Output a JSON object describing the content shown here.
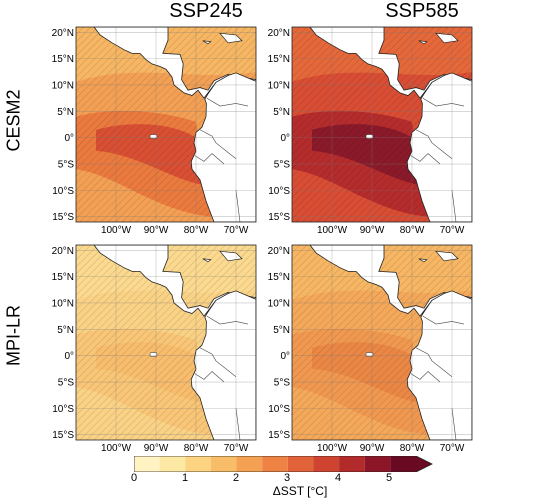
{
  "columns": [
    "SSP245",
    "SSP585"
  ],
  "rows": [
    "CESM2",
    "MPI-LR"
  ],
  "lat_ticks": [
    "20°N",
    "15°N",
    "10°N",
    "5°N",
    "0°",
    "5°S",
    "10°S",
    "15°S"
  ],
  "lon_ticks": [
    "100°W",
    "90°W",
    "80°W",
    "70°W"
  ],
  "colorbar": {
    "label": "ΔSST [°C]",
    "ticks": [
      "0",
      "1",
      "2",
      "3",
      "4",
      "5"
    ],
    "colors": [
      "#fff3c4",
      "#fde8a4",
      "#fbd381",
      "#f9bc68",
      "#f5a153",
      "#ee8343",
      "#e2633a",
      "#cf4431",
      "#b32a2b",
      "#8c1527",
      "#6a0a22"
    ]
  },
  "panel_fills": {
    "cesm2_ssp245": {
      "background": "#f3a054",
      "band_mid": "#ea7a3e",
      "band_core": "#d94f33",
      "north": "#f6b663"
    },
    "cesm2_ssp585": {
      "background": "#d84d33",
      "band_mid": "#b52c2d",
      "band_core": "#8a1a2a",
      "north": "#e4683a"
    },
    "mpi_ssp245": {
      "background": "#fad286",
      "band_mid": "#f9c677",
      "band_core": "#f7bc6c",
      "north": "#fbd98f"
    },
    "mpi_ssp585": {
      "background": "#f4a85a",
      "band_mid": "#f09850",
      "band_core": "#ea8745",
      "north": "#f6b663"
    }
  }
}
